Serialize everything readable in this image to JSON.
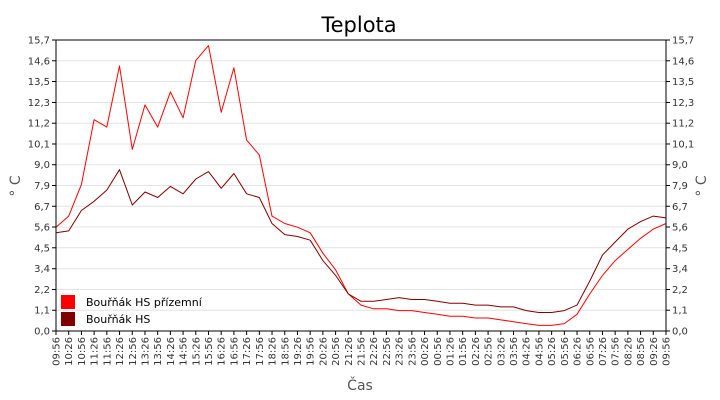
{
  "chart_data": {
    "type": "line",
    "title": "Teplota",
    "xlabel": "Čas",
    "ylabel": "° C",
    "ylim": [
      0,
      15.7
    ],
    "y_ticks": [
      "0,0",
      "1,1",
      "2,2",
      "3,4",
      "4,5",
      "5,6",
      "6,7",
      "7,9",
      "9,0",
      "10,1",
      "11,2",
      "12,3",
      "13,5",
      "14,6",
      "15,7"
    ],
    "y_tick_values": [
      0,
      1.12,
      2.24,
      3.36,
      4.49,
      5.61,
      6.73,
      7.85,
      8.97,
      10.09,
      11.21,
      12.33,
      13.46,
      14.58,
      15.7
    ],
    "x_ticks": [
      "09:56",
      "10:26",
      "10:56",
      "11:26",
      "11:56",
      "12:26",
      "12:56",
      "13:26",
      "13:56",
      "14:26",
      "14:56",
      "15:26",
      "15:56",
      "16:26",
      "16:56",
      "17:26",
      "17:56",
      "18:26",
      "18:56",
      "19:26",
      "19:56",
      "20:26",
      "20:56",
      "21:26",
      "21:56",
      "22:26",
      "22:56",
      "23:26",
      "23:56",
      "00:26",
      "00:56",
      "01:26",
      "01:56",
      "02:26",
      "02:56",
      "03:26",
      "03:56",
      "04:26",
      "04:56",
      "05:26",
      "05:56",
      "06:26",
      "06:56",
      "07:26",
      "07:56",
      "08:26",
      "08:56",
      "09:26",
      "09:56"
    ],
    "grid": true,
    "legend_position": "bottom-left",
    "series": [
      {
        "name": "Bouřňák HS přízemní",
        "color": "#ff0000",
        "x": [
          "09:56",
          "10:26",
          "10:56",
          "11:26",
          "11:56",
          "12:26",
          "12:56",
          "13:26",
          "13:56",
          "14:26",
          "14:56",
          "15:26",
          "15:56",
          "16:26",
          "16:56",
          "17:26",
          "17:56",
          "18:26",
          "18:56",
          "19:26",
          "19:56",
          "20:26",
          "20:56",
          "21:26",
          "21:56",
          "22:26",
          "22:56",
          "23:26",
          "23:56",
          "00:26",
          "00:56",
          "01:26",
          "01:56",
          "02:26",
          "02:56",
          "03:26",
          "03:56",
          "04:26",
          "04:56",
          "05:26",
          "05:56",
          "06:26",
          "06:56",
          "07:26",
          "07:56",
          "08:26",
          "08:56",
          "09:26",
          "09:56"
        ],
        "values": [
          5.6,
          6.2,
          7.9,
          11.4,
          11.0,
          14.3,
          9.8,
          12.2,
          11.0,
          12.9,
          11.5,
          14.6,
          15.4,
          11.8,
          14.2,
          10.3,
          9.5,
          6.2,
          5.8,
          5.6,
          5.3,
          4.2,
          3.3,
          2.0,
          1.4,
          1.2,
          1.2,
          1.1,
          1.1,
          1.0,
          0.9,
          0.8,
          0.8,
          0.7,
          0.7,
          0.6,
          0.5,
          0.4,
          0.3,
          0.3,
          0.4,
          0.9,
          2.0,
          3.0,
          3.8,
          4.4,
          5.0,
          5.5,
          5.8
        ]
      },
      {
        "name": "Bouřňák HS",
        "color": "#800000",
        "x": [
          "09:56",
          "10:26",
          "10:56",
          "11:26",
          "11:56",
          "12:26",
          "12:56",
          "13:26",
          "13:56",
          "14:26",
          "14:56",
          "15:26",
          "15:56",
          "16:26",
          "16:56",
          "17:26",
          "17:56",
          "18:26",
          "18:56",
          "19:26",
          "19:56",
          "20:26",
          "20:56",
          "21:26",
          "21:56",
          "22:26",
          "22:56",
          "23:26",
          "23:56",
          "00:26",
          "00:56",
          "01:26",
          "01:56",
          "02:26",
          "02:56",
          "03:26",
          "03:56",
          "04:26",
          "04:56",
          "05:26",
          "05:56",
          "06:26",
          "06:56",
          "07:26",
          "07:56",
          "08:26",
          "08:56",
          "09:26",
          "09:56"
        ],
        "values": [
          5.3,
          5.4,
          6.5,
          7.0,
          7.6,
          8.7,
          6.8,
          7.5,
          7.2,
          7.8,
          7.4,
          8.2,
          8.6,
          7.7,
          8.5,
          7.4,
          7.2,
          5.8,
          5.2,
          5.1,
          4.9,
          3.8,
          3.0,
          2.0,
          1.6,
          1.6,
          1.7,
          1.8,
          1.7,
          1.7,
          1.6,
          1.5,
          1.5,
          1.4,
          1.4,
          1.3,
          1.3,
          1.1,
          1.0,
          1.0,
          1.1,
          1.4,
          2.7,
          4.1,
          4.8,
          5.5,
          5.9,
          6.2,
          6.1
        ]
      }
    ]
  }
}
